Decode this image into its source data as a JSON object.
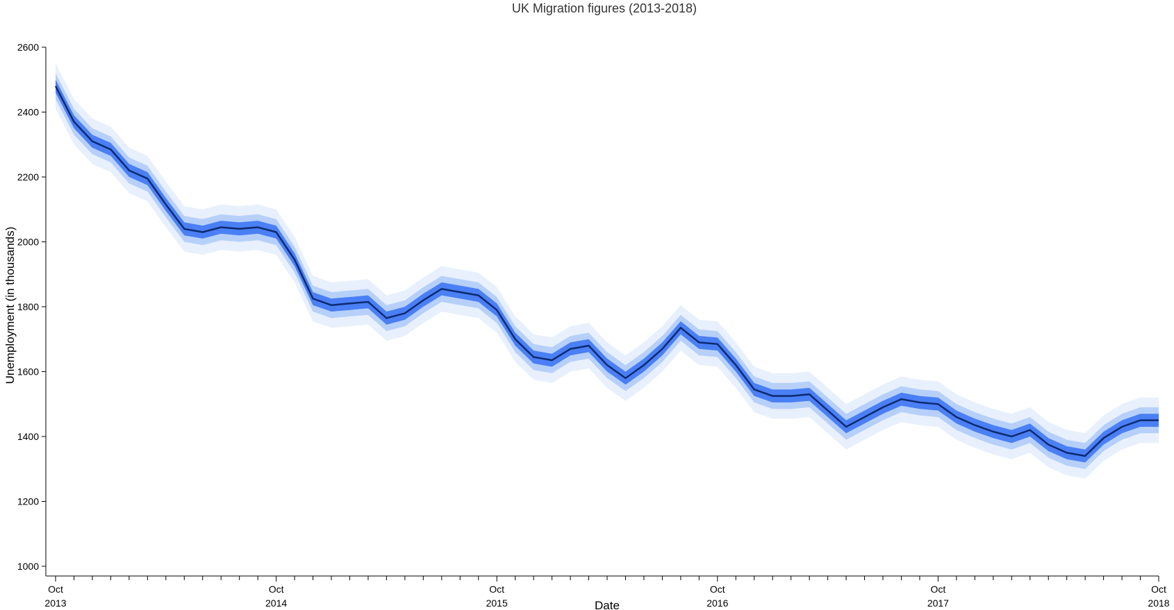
{
  "chart_data": {
    "type": "line",
    "title": "UK Migration figures (2013-2018)",
    "xlabel": "Date",
    "ylabel": "Unemployment (in thousands)",
    "ylim": [
      1000,
      2600
    ],
    "yticks": [
      "1000",
      "1200",
      "1400",
      "1600",
      "1800",
      "2000",
      "2200",
      "2400",
      "2600"
    ],
    "xticks": [
      {
        "month": "Oct",
        "year": "2013"
      },
      {
        "month": "Oct",
        "year": "2014"
      },
      {
        "month": "Oct",
        "year": "2015"
      },
      {
        "month": "Oct",
        "year": "2016"
      },
      {
        "month": "Oct",
        "year": "2017"
      },
      {
        "month": "Oct",
        "year": "2018"
      }
    ],
    "x_start": "2013-10",
    "x_end": "2018-10",
    "series": [
      {
        "values": [
          2480,
          2370,
          2310,
          2285,
          2220,
          2195,
          2115,
          2040,
          2030,
          2045,
          2040,
          2045,
          2030,
          1945,
          1825,
          1805,
          1810,
          1815,
          1765,
          1780,
          1820,
          1855,
          1845,
          1835,
          1790,
          1700,
          1645,
          1635,
          1670,
          1680,
          1620,
          1580,
          1620,
          1670,
          1735,
          1690,
          1685,
          1620,
          1545,
          1525,
          1525,
          1530,
          1480,
          1430,
          1460,
          1490,
          1515,
          1505,
          1500,
          1460,
          1435,
          1415,
          1400,
          1420,
          1375,
          1350,
          1340,
          1395,
          1430,
          1450,
          1450
        ]
      }
    ],
    "bands": [
      {
        "level": "outer",
        "half_width": 70,
        "color": "#e8f0fd"
      },
      {
        "level": "middle",
        "half_width": 40,
        "color": "#b6d0fa"
      },
      {
        "level": "inner",
        "half_width": 20,
        "color": "#4a7ff5"
      }
    ],
    "colors": {
      "line": "#0c2a6e",
      "axis": "#000000"
    }
  }
}
